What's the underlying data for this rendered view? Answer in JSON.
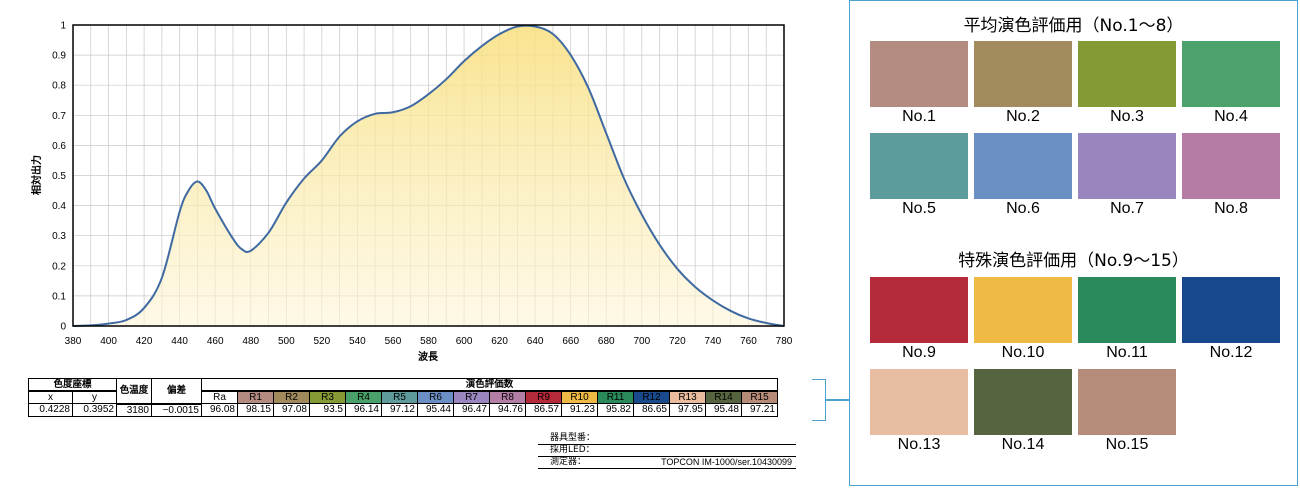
{
  "chart_data": {
    "type": "area",
    "ylabel": "相対出力",
    "xlabel": "波長",
    "xlim": [
      380,
      780
    ],
    "ylim": [
      0,
      1
    ],
    "xticks": [
      380,
      400,
      420,
      440,
      460,
      480,
      500,
      520,
      540,
      560,
      580,
      600,
      620,
      640,
      660,
      680,
      700,
      720,
      740,
      760,
      780
    ],
    "yticks": [
      0,
      0.1,
      0.2,
      0.3,
      0.4,
      0.5,
      0.6,
      0.7,
      0.8,
      0.9,
      1
    ],
    "grid": true,
    "x": [
      380,
      390,
      400,
      410,
      420,
      430,
      440,
      445,
      450,
      455,
      460,
      470,
      475,
      480,
      490,
      500,
      510,
      520,
      530,
      540,
      550,
      560,
      570,
      580,
      590,
      600,
      610,
      620,
      630,
      640,
      650,
      660,
      670,
      680,
      690,
      700,
      710,
      720,
      730,
      740,
      750,
      760,
      770,
      780
    ],
    "y": [
      0,
      0.002,
      0.008,
      0.02,
      0.06,
      0.16,
      0.38,
      0.45,
      0.48,
      0.45,
      0.39,
      0.29,
      0.255,
      0.25,
      0.31,
      0.41,
      0.49,
      0.55,
      0.63,
      0.68,
      0.705,
      0.71,
      0.73,
      0.77,
      0.82,
      0.88,
      0.93,
      0.97,
      0.995,
      0.995,
      0.97,
      0.9,
      0.79,
      0.64,
      0.49,
      0.37,
      0.27,
      0.19,
      0.13,
      0.085,
      0.05,
      0.025,
      0.01,
      0
    ]
  },
  "table": {
    "h_coords": "色度座標",
    "h_x": "x",
    "h_y": "y",
    "h_cct": "色温度",
    "h_duv": "偏差",
    "h_cri": "演色評価数",
    "x": "0.4228",
    "y": "0.3952",
    "cct": "3180",
    "duv": "−0.0015",
    "indices": [
      {
        "label": "Ra",
        "value": "96.08",
        "color": ""
      },
      {
        "label": "R1",
        "value": "98.15",
        "color": "#b38a80"
      },
      {
        "label": "R2",
        "value": "97.08",
        "color": "#a08a5c"
      },
      {
        "label": "R3",
        "value": "93.5",
        "color": "#859a35"
      },
      {
        "label": "R4",
        "value": "96.14",
        "color": "#4aa06a"
      },
      {
        "label": "R5",
        "value": "97.12",
        "color": "#5e9a9c"
      },
      {
        "label": "R6",
        "value": "95.44",
        "color": "#6b8fc4"
      },
      {
        "label": "R7",
        "value": "96.47",
        "color": "#9a86bf"
      },
      {
        "label": "R8",
        "value": "94.76",
        "color": "#b37ea6"
      },
      {
        "label": "R9",
        "value": "86.57",
        "color": "#b52a3a"
      },
      {
        "label": "R10",
        "value": "91.23",
        "color": "#eeb944"
      },
      {
        "label": "R11",
        "value": "95.82",
        "color": "#2a8a5a"
      },
      {
        "label": "R12",
        "value": "86.65",
        "color": "#184a8c"
      },
      {
        "label": "R13",
        "value": "97.95",
        "color": "#e9bca0"
      },
      {
        "label": "R14",
        "value": "95.48",
        "color": "#566540"
      },
      {
        "label": "R15",
        "value": "97.21",
        "color": "#b58b78"
      }
    ]
  },
  "device_info": [
    {
      "label": "器具型番：",
      "value": ""
    },
    {
      "label": "採用LED：",
      "value": ""
    },
    {
      "label": "測定器：",
      "value": "TOPCON IM-1000/ser.10430099"
    }
  ],
  "panel": {
    "general_title": "平均演色評価用（No.1〜8）",
    "special_title": "特殊演色評価用（No.9〜15）",
    "general": [
      {
        "label": "No.1",
        "color": "#b48b80"
      },
      {
        "label": "No.2",
        "color": "#a28b5c"
      },
      {
        "label": "No.3",
        "color": "#849b35"
      },
      {
        "label": "No.4",
        "color": "#4ba26b"
      },
      {
        "label": "No.5",
        "color": "#5e9b9d"
      },
      {
        "label": "No.6",
        "color": "#6a90c4"
      },
      {
        "label": "No.7",
        "color": "#9a86bf"
      },
      {
        "label": "No.8",
        "color": "#b47ca5"
      }
    ],
    "special": [
      {
        "label": "No.9",
        "color": "#b52a3b"
      },
      {
        "label": "No.10",
        "color": "#efbb45"
      },
      {
        "label": "No.11",
        "color": "#2a8a5b"
      },
      {
        "label": "No.12",
        "color": "#17488d"
      },
      {
        "label": "No.13",
        "color": "#e9bda1"
      },
      {
        "label": "No.14",
        "color": "#566540"
      },
      {
        "label": "No.15",
        "color": "#b58b79"
      }
    ]
  }
}
